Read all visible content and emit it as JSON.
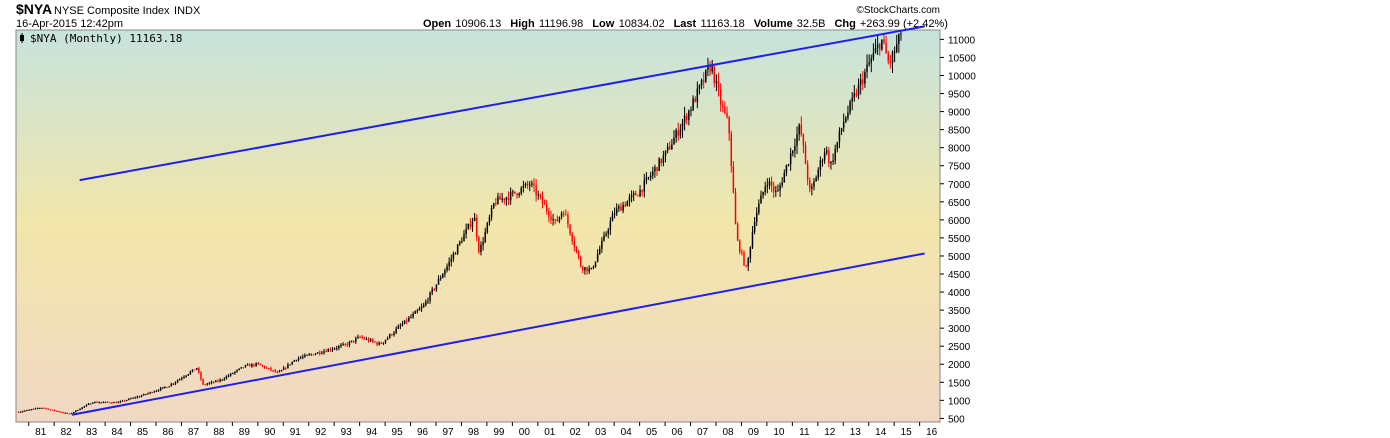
{
  "header": {
    "symbol": "$NYA",
    "name": "NYSE Composite Index",
    "exchange": "INDX",
    "datetime": "16-Apr-2015 12:42pm",
    "brand": "©StockCharts.com",
    "ohlc": [
      {
        "label": "Open",
        "value": "10906.13"
      },
      {
        "label": "High",
        "value": "11196.98"
      },
      {
        "label": "Low",
        "value": "10834.02"
      },
      {
        "label": "Last",
        "value": "11163.18"
      },
      {
        "label": "Volume",
        "value": "32.5B"
      },
      {
        "label": "Chg",
        "value": "+263.99 (+2.42%)"
      }
    ]
  },
  "legend": {
    "text": "$NYA (Monthly) 11163.18",
    "icon": "candle-icon"
  },
  "colors": {
    "up": "#000000",
    "down": "#ff0000",
    "trendline": "#1f1fe6",
    "bg_top": "#c7e3dc",
    "bg_mid": "#f2e6aa",
    "bg_bottom": "#f0d8c4"
  },
  "chart_data": {
    "type": "candlestick",
    "period": "monthly",
    "x_tick_labels": [
      "81",
      "82",
      "83",
      "84",
      "85",
      "86",
      "87",
      "88",
      "89",
      "90",
      "91",
      "92",
      "93",
      "94",
      "95",
      "96",
      "97",
      "98",
      "99",
      "00",
      "01",
      "02",
      "03",
      "04",
      "05",
      "06",
      "07",
      "08",
      "09",
      "10",
      "11",
      "12",
      "13",
      "14",
      "15",
      "16"
    ],
    "y_ticks": [
      500,
      1000,
      1500,
      2000,
      2500,
      3000,
      3500,
      4000,
      4500,
      5000,
      5500,
      6000,
      6500,
      7000,
      7500,
      8000,
      8500,
      9000,
      9500,
      10000,
      10500,
      11000
    ],
    "x_range": [
      1980.5,
      2016.8
    ],
    "y_range": [
      400,
      11260
    ],
    "key_points": [
      {
        "t": 1980.6,
        "v": 680
      },
      {
        "t": 1981.5,
        "v": 800
      },
      {
        "t": 1982.6,
        "v": 620
      },
      {
        "t": 1983.5,
        "v": 950
      },
      {
        "t": 1984.5,
        "v": 940
      },
      {
        "t": 1985.5,
        "v": 1150
      },
      {
        "t": 1986.5,
        "v": 1400
      },
      {
        "t": 1987.6,
        "v": 1900
      },
      {
        "t": 1987.85,
        "v": 1430
      },
      {
        "t": 1988.5,
        "v": 1550
      },
      {
        "t": 1989.5,
        "v": 1950
      },
      {
        "t": 1990.0,
        "v": 2000
      },
      {
        "t": 1990.8,
        "v": 1750
      },
      {
        "t": 1991.5,
        "v": 2150
      },
      {
        "t": 1992.5,
        "v": 2350
      },
      {
        "t": 1993.5,
        "v": 2550
      },
      {
        "t": 1994.0,
        "v": 2750
      },
      {
        "t": 1994.8,
        "v": 2550
      },
      {
        "t": 1995.5,
        "v": 3000
      },
      {
        "t": 1996.5,
        "v": 3600
      },
      {
        "t": 1997.5,
        "v": 4800
      },
      {
        "t": 1998.5,
        "v": 6100
      },
      {
        "t": 1998.7,
        "v": 5100
      },
      {
        "t": 1999.3,
        "v": 6500
      },
      {
        "t": 2000.0,
        "v": 6700
      },
      {
        "t": 2000.7,
        "v": 7000
      },
      {
        "t": 2001.7,
        "v": 5900
      },
      {
        "t": 2002.0,
        "v": 6300
      },
      {
        "t": 2002.7,
        "v": 4700
      },
      {
        "t": 2003.1,
        "v": 4600
      },
      {
        "t": 2004.0,
        "v": 6200
      },
      {
        "t": 2005.0,
        "v": 6800
      },
      {
        "t": 2006.0,
        "v": 7800
      },
      {
        "t": 2007.0,
        "v": 9100
      },
      {
        "t": 2007.8,
        "v": 10300
      },
      {
        "t": 2008.2,
        "v": 9200
      },
      {
        "t": 2008.5,
        "v": 8600
      },
      {
        "t": 2008.8,
        "v": 5500
      },
      {
        "t": 2009.2,
        "v": 4600
      },
      {
        "t": 2009.5,
        "v": 6000
      },
      {
        "t": 2010.0,
        "v": 7100
      },
      {
        "t": 2010.4,
        "v": 6700
      },
      {
        "t": 2011.3,
        "v": 8600
      },
      {
        "t": 2011.7,
        "v": 6700
      },
      {
        "t": 2012.3,
        "v": 8000
      },
      {
        "t": 2012.5,
        "v": 7500
      },
      {
        "t": 2013.0,
        "v": 8700
      },
      {
        "t": 2013.5,
        "v": 9500
      },
      {
        "t": 2014.0,
        "v": 10300
      },
      {
        "t": 2014.5,
        "v": 11000
      },
      {
        "t": 2014.8,
        "v": 10300
      },
      {
        "t": 2015.3,
        "v": 11163
      }
    ],
    "trendlines": [
      {
        "from": {
          "t": 1983.0,
          "v": 7100
        },
        "to": {
          "t": 2016.2,
          "v": 11360
        }
      },
      {
        "from": {
          "t": 1982.7,
          "v": 600
        },
        "to": {
          "t": 2016.2,
          "v": 5070
        }
      }
    ],
    "grid": false
  }
}
